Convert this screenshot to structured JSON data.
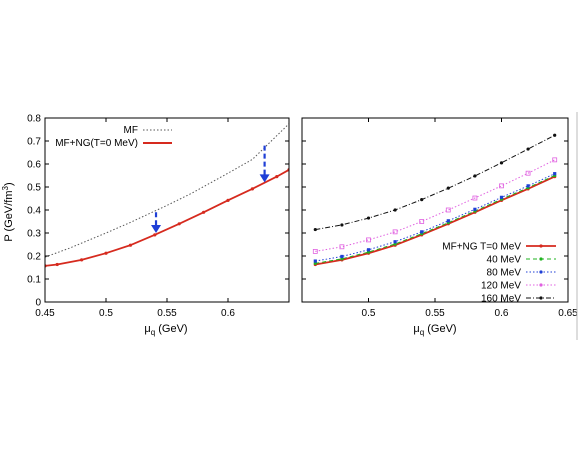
{
  "chart_data": [
    {
      "type": "line",
      "xlabel_main": "μ",
      "xlabel_sub": "q",
      "xlabel_unit": " (GeV)",
      "ylabel_main": "P (GeV/fm",
      "ylabel_sup": "3",
      "ylabel_end": ")",
      "xlim": [
        0.45,
        0.65
      ],
      "ylim": [
        0,
        0.8
      ],
      "xticks": [
        "0.45",
        "0.5",
        "0.55",
        "0.6"
      ],
      "xtick_values": [
        0.45,
        0.5,
        0.55,
        0.6
      ],
      "yticks": [
        "0",
        "0.1",
        "0.2",
        "0.3",
        "0.4",
        "0.5",
        "0.6",
        "0.7",
        "0.8"
      ],
      "ytick_values": [
        0,
        0.1,
        0.2,
        0.3,
        0.4,
        0.5,
        0.6,
        0.7,
        0.8
      ],
      "legend_position": "top-left",
      "series": [
        {
          "name": "MF",
          "color": "#555555",
          "style": "dotted",
          "x": [
            0.45,
            0.47,
            0.5,
            0.52,
            0.55,
            0.57,
            0.6,
            0.62,
            0.65
          ],
          "y": [
            0.195,
            0.234,
            0.3,
            0.346,
            0.42,
            0.472,
            0.56,
            0.62,
            0.775
          ]
        },
        {
          "name": "MF+NG(T=0 MeV)",
          "color": "#d62a1e",
          "style": "solid",
          "x": [
            0.45,
            0.46,
            0.48,
            0.5,
            0.52,
            0.54,
            0.56,
            0.58,
            0.6,
            0.62,
            0.64,
            0.65
          ],
          "y": [
            0.157,
            0.163,
            0.183,
            0.212,
            0.247,
            0.292,
            0.34,
            0.39,
            0.442,
            0.492,
            0.545,
            0.575
          ]
        }
      ],
      "arrows": [
        {
          "x": 0.541,
          "y_from": 0.39,
          "y_to": 0.3,
          "color": "#1f3fd6"
        },
        {
          "x": 0.63,
          "y_from": 0.68,
          "y_to": 0.52,
          "color": "#1f3fd6"
        }
      ]
    },
    {
      "type": "line",
      "xlabel_main": "μ",
      "xlabel_sub": "q",
      "xlabel_unit": " (GeV)",
      "xlim": [
        0.45,
        0.65
      ],
      "ylim": [
        0,
        0.8
      ],
      "xticks": [
        "0.5",
        "0.55",
        "0.6",
        "0.65"
      ],
      "xtick_values": [
        0.5,
        0.55,
        0.6,
        0.65
      ],
      "legend_position": "bottom-right",
      "series": [
        {
          "name": "MF+NG T=0 MeV",
          "color": "#d62a1e",
          "style": "solid",
          "x": [
            0.46,
            0.48,
            0.5,
            0.52,
            0.54,
            0.56,
            0.58,
            0.6,
            0.62,
            0.64
          ],
          "y": [
            0.163,
            0.183,
            0.212,
            0.247,
            0.292,
            0.34,
            0.39,
            0.442,
            0.492,
            0.545
          ]
        },
        {
          "name": "40 MeV",
          "color": "#1fb31f",
          "style": "dashed",
          "x": [
            0.46,
            0.48,
            0.5,
            0.52,
            0.54,
            0.56,
            0.58,
            0.6,
            0.62,
            0.64
          ],
          "y": [
            0.168,
            0.188,
            0.217,
            0.252,
            0.297,
            0.345,
            0.395,
            0.447,
            0.497,
            0.55
          ]
        },
        {
          "name": "80 MeV",
          "color": "#1f3fd6",
          "style": "dotted",
          "x": [
            0.46,
            0.48,
            0.5,
            0.52,
            0.54,
            0.56,
            0.58,
            0.6,
            0.62,
            0.64
          ],
          "y": [
            0.178,
            0.198,
            0.227,
            0.262,
            0.305,
            0.353,
            0.403,
            0.455,
            0.505,
            0.558
          ]
        },
        {
          "name": "120 MeV",
          "color": "#e060e0",
          "style": "dotted",
          "x": [
            0.46,
            0.48,
            0.5,
            0.52,
            0.54,
            0.56,
            0.58,
            0.6,
            0.62,
            0.64
          ],
          "y": [
            0.22,
            0.24,
            0.27,
            0.305,
            0.35,
            0.4,
            0.452,
            0.505,
            0.56,
            0.618
          ]
        },
        {
          "name": "160 MeV",
          "color": "#111111",
          "style": "dashdot",
          "x": [
            0.46,
            0.48,
            0.5,
            0.52,
            0.54,
            0.56,
            0.58,
            0.6,
            0.62,
            0.64
          ],
          "y": [
            0.315,
            0.335,
            0.365,
            0.4,
            0.445,
            0.495,
            0.548,
            0.605,
            0.665,
            0.725
          ]
        }
      ]
    }
  ]
}
